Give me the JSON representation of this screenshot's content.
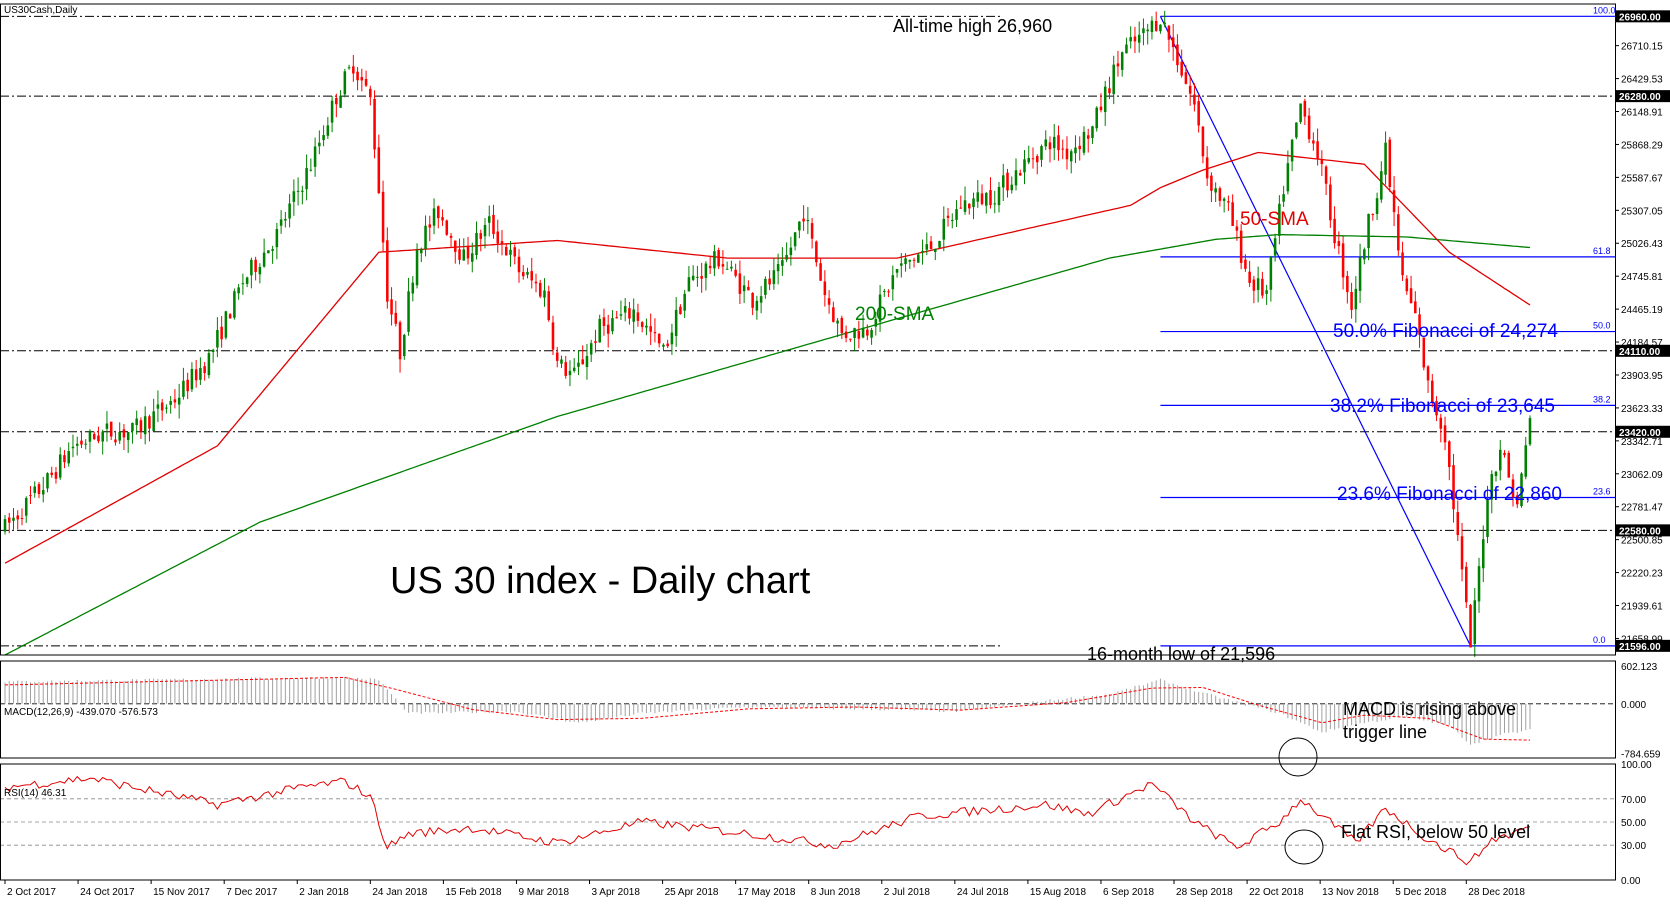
{
  "symbol_label": "US30Cash,Daily",
  "chart_title": "US 30 index - Daily chart",
  "colors": {
    "bull": "#008000",
    "bear": "#ff0000",
    "sma50": "#e00000",
    "sma200": "#008000",
    "fib": "#0000ff",
    "rsi": "#e00000",
    "macd_hist": "#a0a0a0",
    "macd_signal": "#ff0000",
    "grid": "#000000"
  },
  "annotations": {
    "all_time_high": "All-time high 26,960",
    "sma50": "50-SMA",
    "sma200": "200-SMA",
    "fib50": "50.0% Fibonacci of 24,274",
    "fib382": "38.2% Fibonacci of 23,645",
    "fib236": "23.6% Fibonacci of 22,860",
    "low": "16-month low of 21,596",
    "macd_note_1": "MACD is rising above",
    "macd_note_2": "trigger line",
    "rsi_note": "Flat RSI, below 50 level"
  },
  "chart_data": [
    {
      "type": "candlestick",
      "title": "US 30 index - Daily chart",
      "ylim": [
        21518,
        27065
      ],
      "y_ticks": [
        "26710.15",
        "26429.53",
        "26148.91",
        "25868.29",
        "25587.67",
        "25307.05",
        "25026.43",
        "24745.81",
        "24465.19",
        "24184.57",
        "23903.95",
        "23623.33",
        "23342.71",
        "23062.09",
        "22781.47",
        "22500.85",
        "22220.23",
        "21939.61",
        "21658.99"
      ],
      "y_tick_values": [
        26710.15,
        26429.53,
        26148.91,
        25868.29,
        25587.67,
        25307.05,
        25026.43,
        24745.81,
        24465.19,
        24184.57,
        23903.95,
        23623.33,
        23342.71,
        23062.09,
        22781.47,
        22500.85,
        22220.23,
        21939.61,
        21658.99
      ],
      "highlighted_levels": [
        "26960.00",
        "26280.00",
        "24110.00",
        "23420.00",
        "22580.00",
        "21596.00"
      ],
      "highlighted_values": [
        26960,
        26280,
        24110,
        23420,
        22580,
        21596
      ],
      "fib_levels": [
        {
          "label": "100.0",
          "value": 26960
        },
        {
          "label": "61.8",
          "value": 24910
        },
        {
          "label": "50.0",
          "value": 24274
        },
        {
          "label": "38.2",
          "value": 23645
        },
        {
          "label": "23.6",
          "value": 22860
        },
        {
          "label": "0.0",
          "value": 21596
        }
      ],
      "x_labels": [
        "2 Oct 2017",
        "24 Oct 2017",
        "15 Nov 2017",
        "7 Dec 2017",
        "2 Jan 2018",
        "24 Jan 2018",
        "15 Feb 2018",
        "9 Mar 2018",
        "3 Apr 2018",
        "25 Apr 2018",
        "17 May 2018",
        "8 Jun 2018",
        "2 Jul 2018",
        "24 Jul 2018",
        "15 Aug 2018",
        "6 Sep 2018",
        "28 Sep 2018",
        "22 Oct 2018",
        "13 Nov 2018",
        "5 Dec 2018",
        "28 Dec 2018"
      ],
      "price_path": [
        [
          0,
          22600
        ],
        [
          10,
          23000
        ],
        [
          16,
          23300
        ],
        [
          24,
          23420
        ],
        [
          30,
          23420
        ],
        [
          40,
          23700
        ],
        [
          48,
          24050
        ],
        [
          56,
          24700
        ],
        [
          64,
          25100
        ],
        [
          72,
          25700
        ],
        [
          78,
          26280
        ],
        [
          82,
          26560
        ],
        [
          86,
          26250
        ],
        [
          88,
          25500
        ],
        [
          90,
          24600
        ],
        [
          93,
          24100
        ],
        [
          97,
          25000
        ],
        [
          102,
          25300
        ],
        [
          108,
          24900
        ],
        [
          114,
          25200
        ],
        [
          121,
          24800
        ],
        [
          127,
          24600
        ],
        [
          130,
          24000
        ],
        [
          134,
          23900
        ],
        [
          140,
          24300
        ],
        [
          148,
          24450
        ],
        [
          155,
          24100
        ],
        [
          161,
          24700
        ],
        [
          168,
          24900
        ],
        [
          176,
          24550
        ],
        [
          183,
          24800
        ],
        [
          188,
          25300
        ],
        [
          193,
          24600
        ],
        [
          197,
          24250
        ],
        [
          203,
          24300
        ],
        [
          210,
          24800
        ],
        [
          218,
          25000
        ],
        [
          225,
          25350
        ],
        [
          233,
          25450
        ],
        [
          240,
          25700
        ],
        [
          246,
          25900
        ],
        [
          250,
          25800
        ],
        [
          256,
          26000
        ],
        [
          259,
          26300
        ],
        [
          263,
          26650
        ],
        [
          268,
          26800
        ],
        [
          272,
          26960
        ],
        [
          276,
          26600
        ],
        [
          280,
          26200
        ],
        [
          283,
          25600
        ],
        [
          288,
          25300
        ],
        [
          293,
          24700
        ],
        [
          297,
          24600
        ],
        [
          301,
          25500
        ],
        [
          305,
          26200
        ],
        [
          309,
          25800
        ],
        [
          313,
          25100
        ],
        [
          317,
          24500
        ],
        [
          321,
          25200
        ],
        [
          325,
          25800
        ],
        [
          329,
          24700
        ],
        [
          332,
          24400
        ],
        [
          335,
          23800
        ],
        [
          339,
          23400
        ],
        [
          342,
          22500
        ],
        [
          345,
          21596
        ],
        [
          349,
          22900
        ],
        [
          352,
          23300
        ],
        [
          356,
          22780
        ],
        [
          359,
          23550
        ]
      ],
      "sma50": [
        [
          0,
          22300
        ],
        [
          50,
          23300
        ],
        [
          88,
          24950
        ],
        [
          130,
          25050
        ],
        [
          170,
          24900
        ],
        [
          210,
          24900
        ],
        [
          265,
          25350
        ],
        [
          272,
          25500
        ],
        [
          282,
          25650
        ],
        [
          295,
          25800
        ],
        [
          320,
          25700
        ],
        [
          340,
          24950
        ],
        [
          359,
          24500
        ]
      ],
      "sma200": [
        [
          0,
          21518
        ],
        [
          60,
          22650
        ],
        [
          130,
          23550
        ],
        [
          200,
          24280
        ],
        [
          260,
          24900
        ],
        [
          285,
          25060
        ],
        [
          300,
          25100
        ],
        [
          330,
          25080
        ],
        [
          359,
          24990
        ]
      ]
    },
    {
      "type": "bar",
      "title": "MACD(12,26,9) -439.070 -576.573",
      "ylim": [
        -860,
        680
      ],
      "y_ticks": [
        "602.123",
        "0.000",
        "-784.659"
      ],
      "y_tick_values": [
        602.123,
        0,
        -784.659
      ],
      "hist_path": [
        [
          0,
          350
        ],
        [
          80,
          420
        ],
        [
          88,
          380
        ],
        [
          95,
          -150
        ],
        [
          120,
          -120
        ],
        [
          135,
          -300
        ],
        [
          150,
          -150
        ],
        [
          175,
          -50
        ],
        [
          200,
          -80
        ],
        [
          225,
          -120
        ],
        [
          245,
          50
        ],
        [
          260,
          150
        ],
        [
          272,
          380
        ],
        [
          282,
          170
        ],
        [
          300,
          -150
        ],
        [
          310,
          -450
        ],
        [
          320,
          -300
        ],
        [
          330,
          -200
        ],
        [
          340,
          -350
        ],
        [
          345,
          -640
        ],
        [
          349,
          -560
        ],
        [
          353,
          -480
        ],
        [
          359,
          -420
        ]
      ],
      "signal_path": [
        [
          0,
          300
        ],
        [
          80,
          420
        ],
        [
          92,
          230
        ],
        [
          110,
          -90
        ],
        [
          130,
          -250
        ],
        [
          150,
          -230
        ],
        [
          175,
          -80
        ],
        [
          200,
          -50
        ],
        [
          225,
          -100
        ],
        [
          250,
          20
        ],
        [
          270,
          250
        ],
        [
          282,
          260
        ],
        [
          295,
          -20
        ],
        [
          310,
          -300
        ],
        [
          320,
          -180
        ],
        [
          335,
          -230
        ],
        [
          348,
          -560
        ],
        [
          359,
          -576
        ]
      ]
    },
    {
      "type": "line",
      "title": "RSI(14) 46.31",
      "ylim": [
        0,
        100
      ],
      "y_ticks": [
        "100.00",
        "70.00",
        "50.00",
        "30.00",
        "0.00"
      ],
      "y_tick_values": [
        100,
        70,
        50,
        30,
        0
      ],
      "rsi_path": [
        [
          0,
          80
        ],
        [
          20,
          88
        ],
        [
          30,
          80
        ],
        [
          50,
          65
        ],
        [
          70,
          80
        ],
        [
          80,
          85
        ],
        [
          86,
          72
        ],
        [
          90,
          28
        ],
        [
          95,
          40
        ],
        [
          110,
          45
        ],
        [
          130,
          32
        ],
        [
          150,
          50
        ],
        [
          175,
          40
        ],
        [
          195,
          30
        ],
        [
          215,
          55
        ],
        [
          245,
          65
        ],
        [
          255,
          57
        ],
        [
          270,
          83
        ],
        [
          280,
          50
        ],
        [
          290,
          28
        ],
        [
          300,
          50
        ],
        [
          305,
          70
        ],
        [
          318,
          32
        ],
        [
          325,
          62
        ],
        [
          335,
          35
        ],
        [
          345,
          15
        ],
        [
          350,
          35
        ],
        [
          355,
          40
        ],
        [
          359,
          46.31
        ]
      ]
    }
  ]
}
